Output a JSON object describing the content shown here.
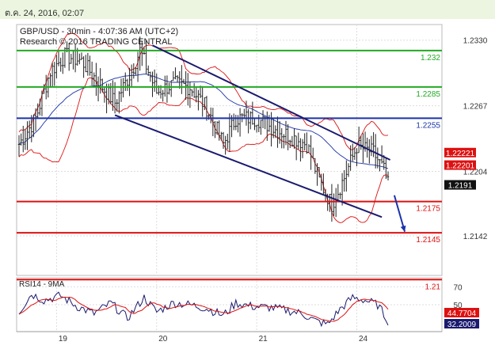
{
  "header": {
    "timestamp": "ต.ค. 24, 2016, 02:07",
    "background": "#ebf5df"
  },
  "chart_data": [
    {
      "type": "candlestick",
      "title": "GBP/USD - 30min - 4:07:36 AM (UTC+2)",
      "subtitle": "Research © 2016 TRADING CENTRAL",
      "ylim": [
        1.2104,
        1.2345
      ],
      "y_ticks": [
        1.233,
        1.2267,
        1.2204,
        1.2142
      ],
      "y_tick_labels": [
        "1.2330",
        "1.2267",
        "1.2204",
        "1.2142"
      ],
      "x_ticks": [
        {
          "label": "19",
          "index": 18
        },
        {
          "label": "20",
          "index": 66
        },
        {
          "label": "21",
          "index": 114
        },
        {
          "label": "24",
          "index": 162
        }
      ],
      "bar_count": 178,
      "horizontal_levels": [
        {
          "value": 1.232,
          "label": "1.232",
          "color": "#22aa22"
        },
        {
          "value": 1.2285,
          "label": "1.2285",
          "color": "#22aa22"
        },
        {
          "value": 1.2255,
          "label": "1.2255",
          "color": "#1a33aa"
        },
        {
          "value": 1.2175,
          "label": "1.2175",
          "color": "#dd1111"
        },
        {
          "value": 1.2145,
          "label": "1.2145",
          "color": "#dd1111"
        },
        {
          "value": 1.21,
          "label": "1.21",
          "color": "#dd1111"
        }
      ],
      "price_tags": [
        {
          "value": 1.2222,
          "label": "1.22221",
          "color": "#dd1111"
        },
        {
          "value": 1.221,
          "label": "1.22201",
          "color": "#dd1111"
        },
        {
          "value": 1.2191,
          "label": "1.2191",
          "color": "#111111"
        }
      ],
      "channel_lines": [
        {
          "name": "upper",
          "from": {
            "index": 64,
            "value": 1.2325
          },
          "to": {
            "index": 178,
            "value": 1.2215
          },
          "color": "#1a1a6e"
        },
        {
          "name": "lower",
          "from": {
            "index": 46,
            "value": 1.2258
          },
          "to": {
            "index": 174,
            "value": 1.216
          },
          "color": "#1a1a6e"
        }
      ],
      "forecast_arrow": {
        "from": {
          "index": 180,
          "value": 1.2181
        },
        "to": {
          "index": 185,
          "value": 1.2146
        },
        "color": "#1a33aa"
      },
      "price_knots": [
        {
          "index": 0,
          "value": 1.223
        },
        {
          "index": 8,
          "value": 1.2255
        },
        {
          "index": 15,
          "value": 1.23
        },
        {
          "index": 22,
          "value": 1.2315
        },
        {
          "index": 30,
          "value": 1.231
        },
        {
          "index": 38,
          "value": 1.229
        },
        {
          "index": 46,
          "value": 1.227
        },
        {
          "index": 54,
          "value": 1.23
        },
        {
          "index": 58,
          "value": 1.232
        },
        {
          "index": 66,
          "value": 1.228
        },
        {
          "index": 74,
          "value": 1.2288
        },
        {
          "index": 82,
          "value": 1.2285
        },
        {
          "index": 90,
          "value": 1.2265
        },
        {
          "index": 98,
          "value": 1.223
        },
        {
          "index": 104,
          "value": 1.2255
        },
        {
          "index": 114,
          "value": 1.2255
        },
        {
          "index": 122,
          "value": 1.2245
        },
        {
          "index": 130,
          "value": 1.2238
        },
        {
          "index": 138,
          "value": 1.223
        },
        {
          "index": 144,
          "value": 1.2195
        },
        {
          "index": 150,
          "value": 1.2172
        },
        {
          "index": 156,
          "value": 1.2198
        },
        {
          "index": 162,
          "value": 1.2228
        },
        {
          "index": 170,
          "value": 1.2222
        },
        {
          "index": 175,
          "value": 1.2205
        },
        {
          "index": 177,
          "value": 1.2191
        }
      ],
      "colors": {
        "candles": "#222222",
        "bollinger": "#dd1111",
        "moving_average": "#1a33aa",
        "grid": "#dddddd",
        "axis_text": "#333333"
      }
    },
    {
      "type": "line",
      "title": "RSI14 - 9MA",
      "ylim": [
        20,
        80
      ],
      "y_ticks": [
        70,
        50
      ],
      "y_tick_labels": [
        "70",
        "50"
      ],
      "series": [
        {
          "name": "RSI14",
          "color": "#1a1a6e",
          "last_label": "32.2009"
        },
        {
          "name": "9MA",
          "color": "#dd1111",
          "last_label": "44.7704"
        }
      ],
      "rsi_knots": [
        {
          "index": 0,
          "value": 42
        },
        {
          "index": 6,
          "value": 62
        },
        {
          "index": 12,
          "value": 55
        },
        {
          "index": 20,
          "value": 60
        },
        {
          "index": 28,
          "value": 48
        },
        {
          "index": 36,
          "value": 40
        },
        {
          "index": 44,
          "value": 52
        },
        {
          "index": 52,
          "value": 35
        },
        {
          "index": 60,
          "value": 58
        },
        {
          "index": 66,
          "value": 42
        },
        {
          "index": 74,
          "value": 52
        },
        {
          "index": 82,
          "value": 50
        },
        {
          "index": 90,
          "value": 46
        },
        {
          "index": 98,
          "value": 38
        },
        {
          "index": 104,
          "value": 52
        },
        {
          "index": 112,
          "value": 48
        },
        {
          "index": 120,
          "value": 47
        },
        {
          "index": 128,
          "value": 44
        },
        {
          "index": 136,
          "value": 40
        },
        {
          "index": 142,
          "value": 32
        },
        {
          "index": 148,
          "value": 28
        },
        {
          "index": 154,
          "value": 45
        },
        {
          "index": 160,
          "value": 58
        },
        {
          "index": 166,
          "value": 55
        },
        {
          "index": 172,
          "value": 50
        },
        {
          "index": 177,
          "value": 32
        }
      ]
    }
  ]
}
